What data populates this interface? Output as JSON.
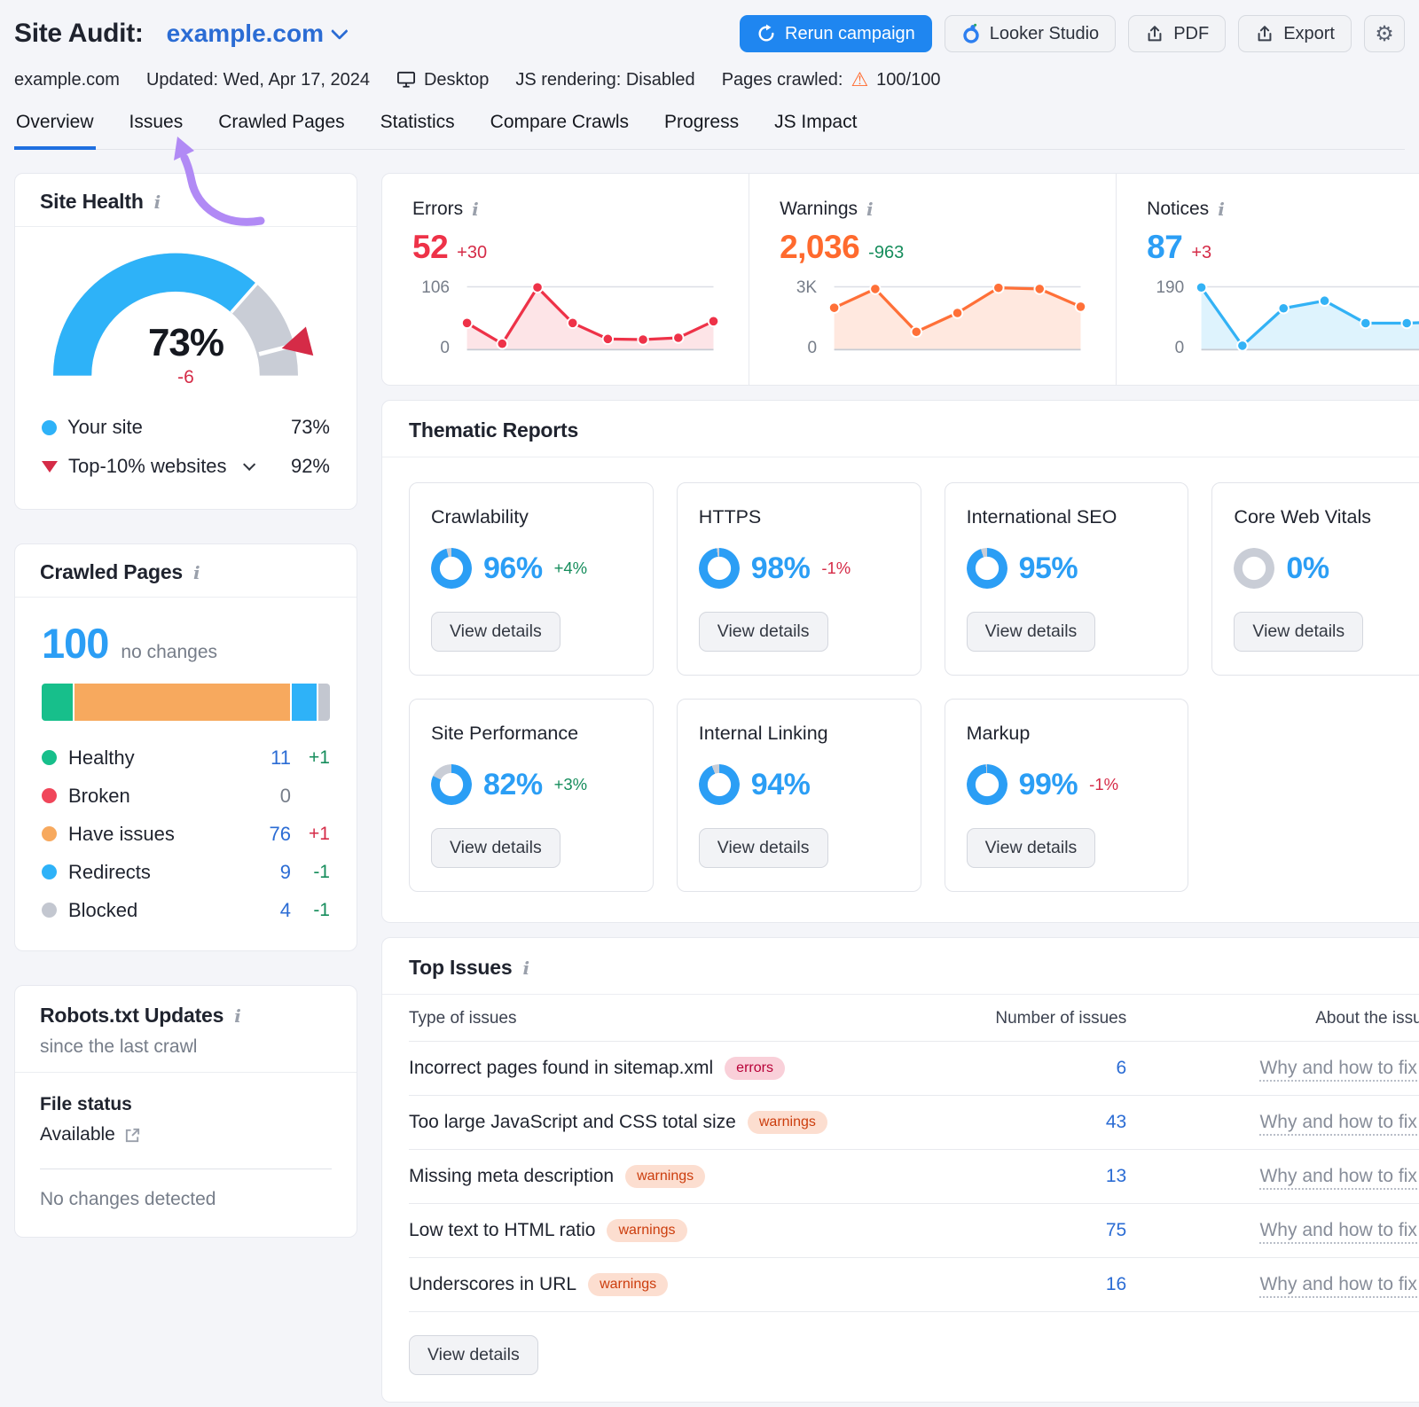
{
  "colors": {
    "accent_blue": "#2b9ef5",
    "link_blue": "#2b6cd4",
    "primary_btn": "#1f86f0",
    "error_red": "#ee3248",
    "warning_orange": "#ff6a2e",
    "notice_blue": "#33b2f5",
    "good_green": "#168d5c",
    "bad_red": "#d52b47",
    "gauge_gray": "#c9cdd6",
    "arrow_purple": "#b18af5"
  },
  "header": {
    "title": "Site Audit:",
    "project": "example.com",
    "rerun_label": "Rerun campaign",
    "looker_label": "Looker Studio",
    "pdf_label": "PDF",
    "export_label": "Export",
    "gear_icon": "⚙",
    "warning_icon": "⚠"
  },
  "meta": {
    "domain": "example.com",
    "updated": "Updated: Wed, Apr 17, 2024",
    "device": "Desktop",
    "js_rendering": "JS rendering: Disabled",
    "pages_crawled_label": "Pages crawled:",
    "pages_crawled_value": "100/100"
  },
  "tabs": {
    "items": [
      "Overview",
      "Issues",
      "Crawled Pages",
      "Statistics",
      "Compare Crawls",
      "Progress",
      "JS Impact"
    ],
    "active": "Overview"
  },
  "site_health": {
    "title": "Site Health",
    "score": 73,
    "score_label": "73%",
    "delta": "-6",
    "delta_class": "neg",
    "benchmark": 92,
    "legend": [
      {
        "label": "Your site",
        "value": "73%"
      },
      {
        "label": "Top-10% websites",
        "value": "92%"
      }
    ]
  },
  "metrics": {
    "errors": {
      "label": "Errors",
      "value": "52",
      "delta": "+30",
      "delta_class": "neg",
      "axis_top": "106",
      "axis_bottom": "0"
    },
    "warnings": {
      "label": "Warnings",
      "value": "2,036",
      "delta": "-963",
      "delta_class": "pos",
      "axis_top": "3K",
      "axis_bottom": "0"
    },
    "notices": {
      "label": "Notices",
      "value": "87",
      "delta": "+3",
      "delta_class": "neg",
      "axis_top": "190",
      "axis_bottom": "0"
    }
  },
  "chart_data": [
    {
      "type": "line",
      "name": "Errors trend",
      "max": 106,
      "values": [
        45,
        10,
        105,
        45,
        18,
        17,
        20,
        48
      ],
      "color": "#ee3248",
      "fill": "rgba(238,50,72,0.13)"
    },
    {
      "type": "line",
      "name": "Warnings trend",
      "max": 3000,
      "values": [
        2000,
        2900,
        850,
        1750,
        2950,
        2900,
        2050
      ],
      "color": "#ff7038",
      "fill": "rgba(255,112,56,0.16)"
    },
    {
      "type": "line",
      "name": "Notices trend",
      "max": 190,
      "values": [
        188,
        12,
        125,
        148,
        80,
        80,
        85
      ],
      "color": "#33b2f5",
      "fill": "rgba(51,178,245,0.16)"
    },
    {
      "type": "gauge",
      "name": "Site Health",
      "value": 73,
      "benchmark": 92
    },
    {
      "type": "bar",
      "name": "Crawled pages split",
      "categories": [
        "Healthy",
        "Have issues",
        "Redirects",
        "Blocked"
      ],
      "values": [
        11,
        76,
        9,
        4
      ]
    }
  ],
  "thematic": {
    "title": "Thematic Reports",
    "view_details": "View details",
    "cards": [
      {
        "name": "Crawlability",
        "pct": 96,
        "pct_label": "96%",
        "delta": "+4%",
        "delta_class": "pos"
      },
      {
        "name": "HTTPS",
        "pct": 98,
        "pct_label": "98%",
        "delta": "-1%",
        "delta_class": "neg"
      },
      {
        "name": "International SEO",
        "pct": 95,
        "pct_label": "95%",
        "delta": "",
        "delta_class": ""
      },
      {
        "name": "Core Web Vitals",
        "pct": 0,
        "pct_label": "0%",
        "delta": "",
        "delta_class": ""
      },
      {
        "name": "Site Performance",
        "pct": 82,
        "pct_label": "82%",
        "delta": "+3%",
        "delta_class": "pos"
      },
      {
        "name": "Internal Linking",
        "pct": 94,
        "pct_label": "94%",
        "delta": "",
        "delta_class": ""
      },
      {
        "name": "Markup",
        "pct": 99,
        "pct_label": "99%",
        "delta": "-1%",
        "delta_class": "neg"
      }
    ]
  },
  "crawled_pages": {
    "title": "Crawled Pages",
    "total": "100",
    "note": "no changes",
    "segments": [
      {
        "pct": 11,
        "color": "#17bf8b"
      },
      {
        "pct": 76,
        "color": "#f7a95e"
      },
      {
        "pct": 9,
        "color": "#2eb2f8"
      },
      {
        "pct": 4,
        "color": "#c3c7d0"
      }
    ],
    "legend": [
      {
        "label": "Healthy",
        "value": "11",
        "value_class": "",
        "delta": "+1",
        "delta_class": "pos"
      },
      {
        "label": "Broken",
        "value": "0",
        "value_class": "gray",
        "delta": "",
        "delta_class": ""
      },
      {
        "label": "Have issues",
        "value": "76",
        "value_class": "",
        "delta": "+1",
        "delta_class": "neg"
      },
      {
        "label": "Redirects",
        "value": "9",
        "value_class": "",
        "delta": "-1",
        "delta_class": "pos"
      },
      {
        "label": "Blocked",
        "value": "4",
        "value_class": "",
        "delta": "-1",
        "delta_class": "pos"
      }
    ]
  },
  "robots": {
    "title": "Robots.txt Updates",
    "subtitle": "since the last crawl",
    "file_status_label": "File status",
    "file_status_value": "Available",
    "note": "No changes detected"
  },
  "top_issues": {
    "title": "Top Issues",
    "col_type": "Type of issues",
    "col_number": "Number of issues",
    "col_about": "About the issue",
    "fix_link": "Why and how to fix it",
    "view_details": "View details",
    "rows": [
      {
        "type": "Incorrect pages found in sitemap.xml",
        "badge_label": "errors",
        "badge_class": "errors",
        "count": "6"
      },
      {
        "type": "Too large JavaScript and CSS total size",
        "badge_label": "warnings",
        "badge_class": "warnings",
        "count": "43"
      },
      {
        "type": "Missing meta description",
        "badge_label": "warnings",
        "badge_class": "warnings",
        "count": "13"
      },
      {
        "type": "Low text to HTML ratio",
        "badge_label": "warnings",
        "badge_class": "warnings",
        "count": "75"
      },
      {
        "type": "Underscores in URL",
        "badge_label": "warnings",
        "badge_class": "warnings",
        "count": "16"
      }
    ]
  }
}
